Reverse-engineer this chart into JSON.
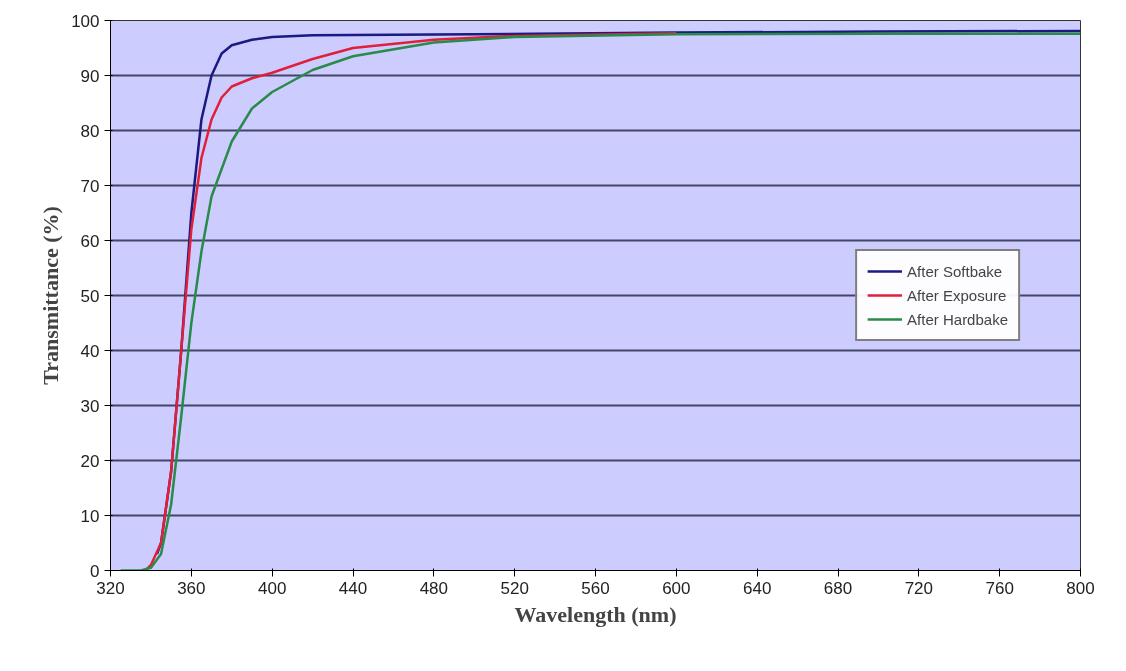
{
  "chart_data": {
    "type": "line",
    "xlabel": "Wavelength (nm)",
    "ylabel": "Transmittance (%)",
    "xlim": [
      320,
      800
    ],
    "ylim": [
      0,
      100
    ],
    "xticks": [
      320,
      360,
      400,
      440,
      480,
      520,
      560,
      600,
      640,
      680,
      720,
      760,
      800
    ],
    "yticks": [
      0,
      10,
      20,
      30,
      40,
      50,
      60,
      70,
      80,
      90,
      100
    ],
    "grid": "y",
    "legend": "right",
    "marker": "none",
    "line_style": "solid",
    "series": [
      {
        "name": "After Softbake",
        "color": "#1a1a80",
        "x": [
          343,
          345,
          350,
          355,
          360,
          365,
          370,
          375,
          380,
          390,
          400,
          420,
          460,
          500,
          600,
          700,
          800
        ],
        "values": [
          3,
          5,
          18,
          40,
          65,
          82,
          90,
          94,
          95.5,
          96.5,
          97,
          97.3,
          97.4,
          97.5,
          97.8,
          98,
          98.1
        ]
      },
      {
        "name": "After Exposure",
        "color": "#e0203a",
        "x": [
          338,
          340,
          345,
          350,
          355,
          360,
          365,
          370,
          375,
          380,
          390,
          400,
          420,
          440,
          480,
          520,
          600
        ],
        "values": [
          0.3,
          1,
          5,
          18,
          40,
          62,
          75,
          82,
          86,
          88,
          89.5,
          90.5,
          93,
          95,
          96.5,
          97.2,
          97.7
        ]
      },
      {
        "name": "After Hardbake",
        "color": "#2a8a4a",
        "x": [
          325,
          335,
          340,
          345,
          350,
          355,
          360,
          365,
          370,
          380,
          390,
          400,
          420,
          440,
          480,
          520,
          600,
          700,
          800
        ],
        "values": [
          0,
          0,
          0.5,
          3,
          12,
          28,
          45,
          58,
          68,
          78,
          84,
          87,
          91,
          93.5,
          96,
          97,
          97.5,
          97.6,
          97.6
        ]
      }
    ]
  }
}
